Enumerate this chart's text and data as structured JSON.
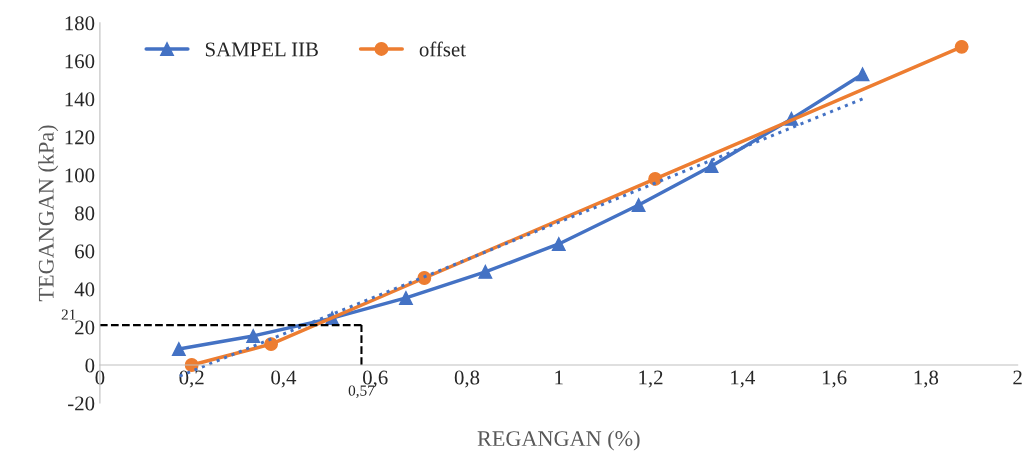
{
  "chart_data": {
    "type": "line",
    "xlabel": "REGANGAN (%)",
    "ylabel": "TEGANGAN (kPa)",
    "xlim": [
      0,
      2
    ],
    "ylim": [
      -20,
      180
    ],
    "xticks": [
      {
        "value": 0,
        "label": "0"
      },
      {
        "value": 0.2,
        "label": "0,2"
      },
      {
        "value": 0.4,
        "label": "0,4"
      },
      {
        "value": 0.6,
        "label": "0,6"
      },
      {
        "value": 0.8,
        "label": "0,8"
      },
      {
        "value": 1,
        "label": "1"
      },
      {
        "value": 1.2,
        "label": "1,2"
      },
      {
        "value": 1.4,
        "label": "1,4"
      },
      {
        "value": 1.6,
        "label": "1,6"
      },
      {
        "value": 1.8,
        "label": "1,8"
      },
      {
        "value": 2,
        "label": "2"
      }
    ],
    "yticks": [
      -20,
      0,
      20,
      40,
      60,
      80,
      100,
      120,
      140,
      160,
      180
    ],
    "grid": false,
    "legend": "top left",
    "series": [
      {
        "name": "SAMPEL IIB",
        "color": "#4472c4",
        "marker": "triangle",
        "line_style": "solid",
        "x": [
          0.172,
          0.334,
          0.506,
          0.667,
          0.84,
          1.0,
          1.174,
          1.333,
          1.507,
          1.662
        ],
        "values": [
          8.4,
          15.3,
          24.7,
          35.3,
          49,
          63.7,
          84.2,
          104.7,
          129.5,
          153
        ]
      },
      {
        "name": "offset",
        "color": "#ed7d31",
        "marker": "circle",
        "line_style": "solid",
        "x": [
          0.2,
          0.373,
          0.707,
          1.21,
          1.878
        ],
        "values": [
          0,
          11,
          45.8,
          97.9,
          167.4
        ]
      },
      {
        "color": "#4472c4",
        "marker": "none",
        "line_style": "dotted",
        "x": [
          0.174,
          1.662
        ],
        "values": [
          -5.8,
          140
        ]
      }
    ],
    "ref_lines": [
      {
        "axis": "y",
        "value": 21,
        "label": "21",
        "color": "#000000",
        "line_style": "dashed"
      },
      {
        "axis": "x",
        "value": 0.57,
        "label": "0,57",
        "color": "#000000",
        "line_style": "dashed"
      }
    ]
  }
}
